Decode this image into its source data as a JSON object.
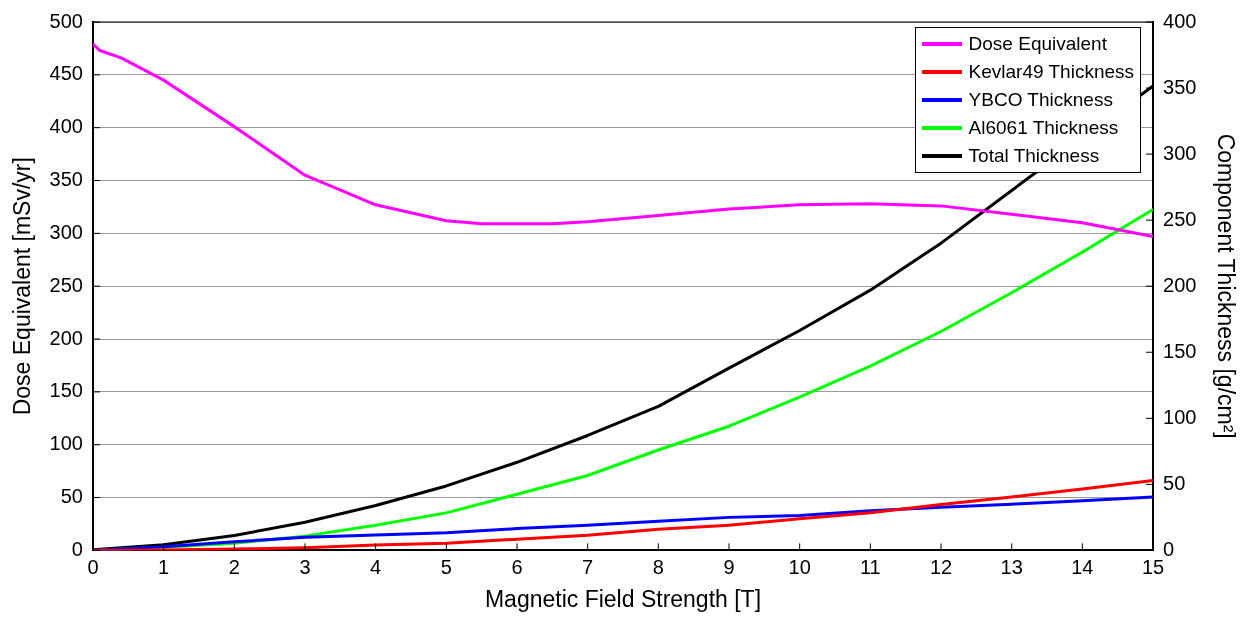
{
  "chart_data": {
    "type": "line",
    "xlabel": "Magnetic Field Strength [T]",
    "ylabel": "Dose Equivalent [mSv/yr]",
    "y2label": "Component Thickness [g/cm²]",
    "xlim": [
      0,
      15
    ],
    "xticks": [
      0,
      1,
      2,
      3,
      4,
      5,
      6,
      7,
      8,
      9,
      10,
      11,
      12,
      13,
      14,
      15
    ],
    "ylim": [
      0,
      500
    ],
    "yticks": [
      0,
      50,
      100,
      150,
      200,
      250,
      300,
      350,
      400,
      450,
      500
    ],
    "y2lim": [
      0,
      400
    ],
    "y2ticks": [
      0,
      50,
      100,
      150,
      200,
      250,
      300,
      350,
      400
    ],
    "grid": "y",
    "legend": "top right",
    "line_style": "solid",
    "marker": "none",
    "series": [
      {
        "name": "Dose Equivalent",
        "color": "#ff00ff",
        "x": [
          0,
          0.1,
          0.4,
          1,
          2,
          3,
          4,
          5,
          5.5,
          6,
          6.5,
          7,
          8,
          9,
          10,
          11,
          12,
          13,
          14,
          15
        ],
        "values": [
          479,
          473,
          466,
          445,
          401,
          355,
          327,
          312,
          309,
          309,
          309,
          311,
          317,
          323,
          327,
          328,
          326,
          318,
          310,
          297
        ]
      },
      {
        "name": "Kevlar49 Thickness",
        "color": "#ff0000",
        "axis": "y2",
        "x": [
          0,
          1,
          2,
          3,
          4,
          5,
          6,
          7,
          8,
          9,
          10,
          11,
          12,
          13,
          14,
          15
        ],
        "values": [
          0,
          0.3,
          1,
          2,
          4,
          5.5,
          8.5,
          11.5,
          16,
          19,
          24,
          28.5,
          34.7,
          40.5,
          46.4,
          53
        ]
      },
      {
        "name": "YBCO Thickness",
        "color": "#0000ff",
        "axis": "y2",
        "x": [
          0,
          1,
          2,
          3,
          4,
          5,
          6,
          7,
          8,
          9,
          10,
          11,
          12,
          13,
          14,
          15
        ],
        "values": [
          0,
          2.8,
          6.5,
          10,
          11.6,
          13.3,
          16.5,
          19,
          22,
          25,
          26.5,
          30,
          32.7,
          35,
          37.6,
          40.5
        ]
      },
      {
        "name": "Al6061 Thickness",
        "color": "#00ff00",
        "axis": "y2",
        "x": [
          0,
          1,
          2,
          3,
          4,
          5,
          6,
          7,
          8,
          9,
          10,
          11,
          12,
          13,
          14,
          15
        ],
        "values": [
          0,
          2.3,
          5.4,
          10.8,
          19,
          28.4,
          42.5,
          56.7,
          76,
          94,
          116,
          139.5,
          165.7,
          195,
          225.8,
          258
        ]
      },
      {
        "name": "Total Thickness",
        "color": "#000000",
        "axis": "y2",
        "x": [
          0,
          1,
          2,
          3,
          4,
          5,
          6,
          7,
          8,
          9,
          10,
          11,
          12,
          13,
          14,
          15
        ],
        "values": [
          0.5,
          4.3,
          11.3,
          21.3,
          34,
          48.8,
          66.7,
          87,
          109,
          138,
          166.5,
          197,
          232.6,
          272.5,
          null,
          351.6
        ]
      }
    ]
  }
}
